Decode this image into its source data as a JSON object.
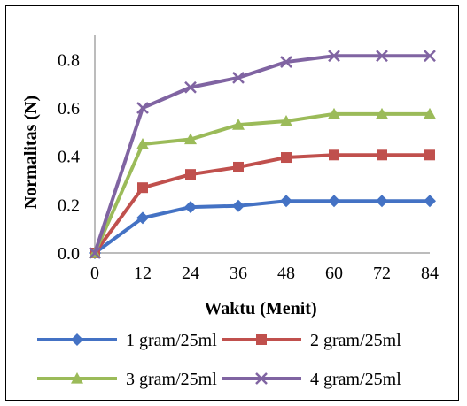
{
  "chart_data": {
    "type": "line",
    "xlabel": "Waktu (Menit)",
    "ylabel": "Normalitas (N)",
    "x": [
      0,
      12,
      24,
      36,
      48,
      60,
      72,
      84
    ],
    "xlim": [
      0,
      84
    ],
    "ylim": [
      0,
      0.9
    ],
    "yticks": [
      "0.0",
      "0.2",
      "0.4",
      "0.6",
      "0.8"
    ],
    "grid": false,
    "legend_position": "bottom",
    "series": [
      {
        "name": "1 gram/25ml",
        "color": "#4472c4",
        "marker": "diamond",
        "values": [
          0,
          0.145,
          0.19,
          0.195,
          0.215,
          0.215,
          0.215,
          0.215
        ]
      },
      {
        "name": "2 gram/25ml",
        "color": "#c0504d",
        "marker": "square",
        "values": [
          0,
          0.27,
          0.325,
          0.355,
          0.395,
          0.405,
          0.405,
          0.405
        ]
      },
      {
        "name": "3 gram/25ml",
        "color": "#9bbb59",
        "marker": "triangle",
        "values": [
          0,
          0.45,
          0.47,
          0.53,
          0.545,
          0.575,
          0.575,
          0.575
        ]
      },
      {
        "name": "4 gram/25ml",
        "color": "#8064a2",
        "marker": "x",
        "values": [
          0,
          0.6,
          0.685,
          0.725,
          0.79,
          0.815,
          0.815,
          0.815
        ]
      }
    ]
  }
}
